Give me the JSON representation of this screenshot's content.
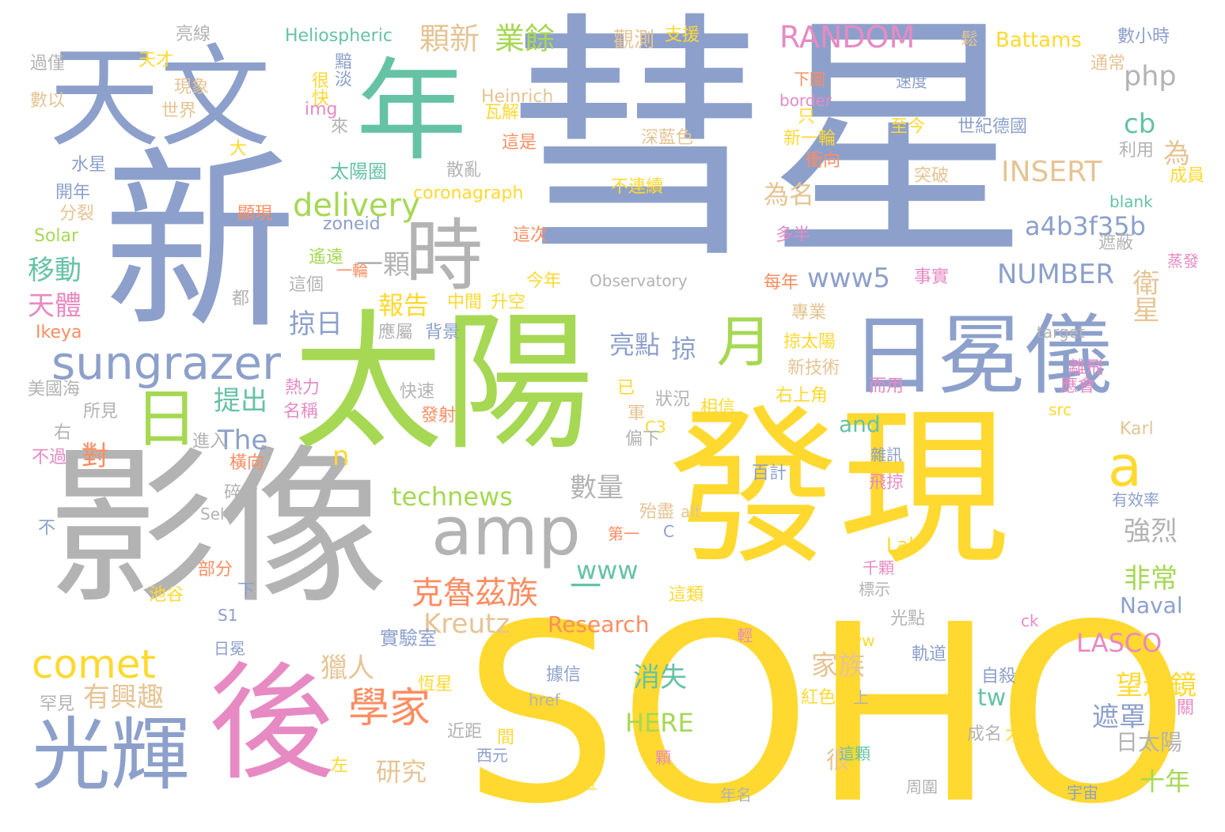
{
  "palette": {
    "blue": "#8da0cb",
    "yellow": "#ffd92f",
    "green": "#a6d854",
    "gray": "#b3b3b3",
    "pink": "#e78ac3",
    "orange": "#fc8d62",
    "teal": "#66c2a5",
    "tan": "#e5c494"
  },
  "words": [
    {
      "t": "彗星",
      "c": "blue"
    },
    {
      "t": "SOHO",
      "c": "yellow"
    },
    {
      "t": "新",
      "c": "blue"
    },
    {
      "t": "影像",
      "c": "gray"
    },
    {
      "t": "發現",
      "c": "yellow"
    },
    {
      "t": "太陽",
      "c": "green"
    },
    {
      "t": "天文",
      "c": "blue"
    },
    {
      "t": "年",
      "c": "teal"
    },
    {
      "t": "後",
      "c": "pink"
    },
    {
      "t": "日冕儀",
      "c": "blue"
    },
    {
      "t": "光輝",
      "c": "blue"
    },
    {
      "t": "時",
      "c": "gray"
    },
    {
      "t": "amp",
      "c": "gray"
    },
    {
      "t": "日",
      "c": "green"
    },
    {
      "t": "月",
      "c": "green"
    },
    {
      "t": "sungrazer",
      "c": "blue"
    },
    {
      "t": "comet",
      "c": "yellow"
    },
    {
      "t": "學家",
      "c": "orange"
    },
    {
      "t": "克魯茲族",
      "c": "orange"
    },
    {
      "t": "a",
      "c": "yellow"
    },
    {
      "t": "一",
      "c": "teal"
    },
    {
      "t": "RANDOM",
      "c": "pink"
    },
    {
      "t": "顆新",
      "c": "tan"
    },
    {
      "t": "業餘",
      "c": "green"
    },
    {
      "t": "php",
      "c": "gray"
    },
    {
      "t": "delivery",
      "c": "green"
    },
    {
      "t": "一顆",
      "c": "gray"
    },
    {
      "t": "移動",
      "c": "teal"
    },
    {
      "t": "天體",
      "c": "pink"
    },
    {
      "t": "報告",
      "c": "yellow"
    },
    {
      "t": "掠日",
      "c": "blue"
    },
    {
      "t": "亮點",
      "c": "blue"
    },
    {
      "t": "掠",
      "c": "blue"
    },
    {
      "t": "為名",
      "c": "tan"
    },
    {
      "t": "www5",
      "c": "blue"
    },
    {
      "t": "a4b3f35b",
      "c": "blue"
    },
    {
      "t": "NUMBER",
      "c": "blue"
    },
    {
      "t": "INSERT",
      "c": "tan"
    },
    {
      "t": "cb",
      "c": "teal"
    },
    {
      "t": "為",
      "c": "tan"
    },
    {
      "t": "衛星",
      "c": "tan"
    },
    {
      "t": "提出",
      "c": "teal"
    },
    {
      "t": "對",
      "c": "orange"
    },
    {
      "t": "The",
      "c": "blue"
    },
    {
      "t": "n",
      "c": "yellow"
    },
    {
      "t": "technews",
      "c": "green"
    },
    {
      "t": "數量",
      "c": "gray"
    },
    {
      "t": "強烈",
      "c": "gray"
    },
    {
      "t": "非常",
      "c": "green"
    },
    {
      "t": "Kreutz",
      "c": "tan"
    },
    {
      "t": "www",
      "c": "teal"
    },
    {
      "t": "and",
      "c": "teal"
    },
    {
      "t": "有興趣",
      "c": "tan"
    },
    {
      "t": "獵人",
      "c": "tan"
    },
    {
      "t": "家族",
      "c": "tan"
    },
    {
      "t": "LASCO",
      "c": "pink"
    },
    {
      "t": "望遠鏡",
      "c": "yellow"
    },
    {
      "t": "消失",
      "c": "teal"
    },
    {
      "t": "HERE",
      "c": "green"
    },
    {
      "t": "tw",
      "c": "teal"
    },
    {
      "t": "研究",
      "c": "tan"
    },
    {
      "t": "很",
      "c": "tan"
    },
    {
      "t": "遮罩",
      "c": "blue"
    },
    {
      "t": "十年",
      "c": "green"
    },
    {
      "t": "日太陽",
      "c": "gray"
    },
    {
      "t": "Naval",
      "c": "blue"
    },
    {
      "t": "Research",
      "c": "orange"
    },
    {
      "t": "Lab",
      "c": "yellow"
    },
    {
      "t": "實驗室",
      "c": "blue"
    },
    {
      "t": "Battams",
      "c": "yellow"
    },
    {
      "t": "觀測",
      "c": "tan"
    },
    {
      "t": "支援",
      "c": "yellow"
    },
    {
      "t": "Heliospheric",
      "c": "teal"
    },
    {
      "t": "亮線",
      "c": "gray"
    },
    {
      "t": "鬆",
      "c": "tan"
    },
    {
      "t": "數小時",
      "c": "blue"
    },
    {
      "t": "天才",
      "c": "yellow"
    },
    {
      "t": "過僅",
      "c": "gray"
    },
    {
      "t": "黯淡",
      "c": "blue"
    },
    {
      "t": "下圖",
      "c": "orange"
    },
    {
      "t": "通常",
      "c": "tan"
    },
    {
      "t": "現象",
      "c": "tan"
    },
    {
      "t": "很快",
      "c": "yellow"
    },
    {
      "t": "Heinrich",
      "c": "tan"
    },
    {
      "t": "速度",
      "c": "blue"
    },
    {
      "t": "數以",
      "c": "tan"
    },
    {
      "t": "img",
      "c": "pink"
    },
    {
      "t": "瓦解",
      "c": "yellow"
    },
    {
      "t": "border",
      "c": "pink"
    },
    {
      "t": "世界",
      "c": "tan"
    },
    {
      "t": "來",
      "c": "gray"
    },
    {
      "t": "只",
      "c": "yellow"
    },
    {
      "t": "至今",
      "c": "yellow"
    },
    {
      "t": "世紀德國",
      "c": "blue"
    },
    {
      "t": "深藍色",
      "c": "tan"
    },
    {
      "t": "新一輪",
      "c": "yellow"
    },
    {
      "t": "這是",
      "c": "orange"
    },
    {
      "t": "大",
      "c": "yellow"
    },
    {
      "t": "利用",
      "c": "gray"
    },
    {
      "t": "水星",
      "c": "blue"
    },
    {
      "t": "衝向",
      "c": "orange"
    },
    {
      "t": "成員",
      "c": "yellow"
    },
    {
      "t": "太陽圈",
      "c": "teal"
    },
    {
      "t": "散亂",
      "c": "gray"
    },
    {
      "t": "突破",
      "c": "tan"
    },
    {
      "t": "不連續",
      "c": "yellow"
    },
    {
      "t": "開年",
      "c": "blue"
    },
    {
      "t": "coronagraph",
      "c": "yellow"
    },
    {
      "t": "blank",
      "c": "teal"
    },
    {
      "t": "分裂",
      "c": "tan"
    },
    {
      "t": "顯現",
      "c": "orange"
    },
    {
      "t": "zoneid",
      "c": "blue"
    },
    {
      "t": "這次",
      "c": "orange"
    },
    {
      "t": "多半",
      "c": "pink"
    },
    {
      "t": "遮蔽",
      "c": "gray"
    },
    {
      "t": "Solar",
      "c": "green"
    },
    {
      "t": "遙遠",
      "c": "green"
    },
    {
      "t": "蒸發",
      "c": "pink"
    },
    {
      "t": "一輪",
      "c": "orange"
    },
    {
      "t": "這個",
      "c": "gray"
    },
    {
      "t": "今年",
      "c": "yellow"
    },
    {
      "t": "Observatory",
      "c": "gray"
    },
    {
      "t": "事實",
      "c": "pink"
    },
    {
      "t": "每年",
      "c": "orange"
    },
    {
      "t": "都",
      "c": "gray"
    },
    {
      "t": "中間",
      "c": "yellow"
    },
    {
      "t": "升空",
      "c": "yellow"
    },
    {
      "t": "專業",
      "c": "tan"
    },
    {
      "t": "Ikeya",
      "c": "orange"
    },
    {
      "t": "應屬",
      "c": "gray"
    },
    {
      "t": "背景",
      "c": "blue"
    },
    {
      "t": "target",
      "c": "gray"
    },
    {
      "t": "掠太陽",
      "c": "yellow"
    },
    {
      "t": "離飛",
      "c": "pink"
    },
    {
      "t": "美國海",
      "c": "gray"
    },
    {
      "t": "熱力",
      "c": "pink"
    },
    {
      "t": "快速",
      "c": "gray"
    },
    {
      "t": "新技術",
      "c": "tan"
    },
    {
      "t": "而用",
      "c": "pink"
    },
    {
      "t": "應會",
      "c": "pink"
    },
    {
      "t": "已",
      "c": "yellow"
    },
    {
      "t": "所見",
      "c": "gray"
    },
    {
      "t": "名稱",
      "c": "pink"
    },
    {
      "t": "發射",
      "c": "orange"
    },
    {
      "t": "狀況",
      "c": "gray"
    },
    {
      "t": "相信",
      "c": "yellow"
    },
    {
      "t": "右上角",
      "c": "yellow"
    },
    {
      "t": "src",
      "c": "yellow"
    },
    {
      "t": "軍",
      "c": "tan"
    },
    {
      "t": "右",
      "c": "gray"
    },
    {
      "t": "C3",
      "c": "yellow"
    },
    {
      "t": "Karl",
      "c": "tan"
    },
    {
      "t": "不過",
      "c": "pink"
    },
    {
      "t": "進入",
      "c": "gray"
    },
    {
      "t": "偏下",
      "c": "gray"
    },
    {
      "t": "橫向",
      "c": "orange"
    },
    {
      "t": "雜訊",
      "c": "blue"
    },
    {
      "t": "百計",
      "c": "blue"
    },
    {
      "t": "飛掠",
      "c": "pink"
    },
    {
      "t": "碎片",
      "c": "gray"
    },
    {
      "t": "有效率",
      "c": "blue"
    },
    {
      "t": "不",
      "c": "blue"
    },
    {
      "t": "Seki",
      "c": "gray"
    },
    {
      "t": "殆盡",
      "c": "tan"
    },
    {
      "t": "alt",
      "c": "tan"
    },
    {
      "t": "第一",
      "c": "orange"
    },
    {
      "t": "C",
      "c": "blue"
    },
    {
      "t": "部分",
      "c": "orange"
    },
    {
      "t": "千顆",
      "c": "pink"
    },
    {
      "t": "池谷",
      "c": "yellow"
    },
    {
      "t": "下",
      "c": "blue"
    },
    {
      "t": "這類",
      "c": "yellow"
    },
    {
      "t": "標示",
      "c": "gray"
    },
    {
      "t": "S1",
      "c": "blue"
    },
    {
      "t": "光點",
      "c": "gray"
    },
    {
      "t": "日冕",
      "c": "blue"
    },
    {
      "t": "avw",
      "c": "yellow"
    },
    {
      "t": "ck",
      "c": "pink"
    },
    {
      "t": "輕",
      "c": "pink"
    },
    {
      "t": "軌道",
      "c": "blue"
    },
    {
      "t": "據信",
      "c": "blue"
    },
    {
      "t": "恆星",
      "c": "yellow"
    },
    {
      "t": "自殺",
      "c": "blue"
    },
    {
      "t": "罕見",
      "c": "gray"
    },
    {
      "t": "href",
      "c": "gray"
    },
    {
      "t": "紅色",
      "c": "yellow"
    },
    {
      "t": "上",
      "c": "gray"
    },
    {
      "t": "關",
      "c": "pink"
    },
    {
      "t": "成名",
      "c": "gray"
    },
    {
      "t": "大小",
      "c": "yellow"
    },
    {
      "t": "近距",
      "c": "gray"
    },
    {
      "t": "間",
      "c": "yellow"
    },
    {
      "t": "左",
      "c": "yellow"
    },
    {
      "t": "西元",
      "c": "blue"
    },
    {
      "t": "這顆",
      "c": "teal"
    },
    {
      "t": "顆",
      "c": "pink"
    },
    {
      "t": "近",
      "c": "yellow"
    },
    {
      "t": "周圍",
      "c": "gray"
    },
    {
      "t": "宇宙",
      "c": "blue"
    },
    {
      "t": "年名",
      "c": "gray"
    }
  ]
}
